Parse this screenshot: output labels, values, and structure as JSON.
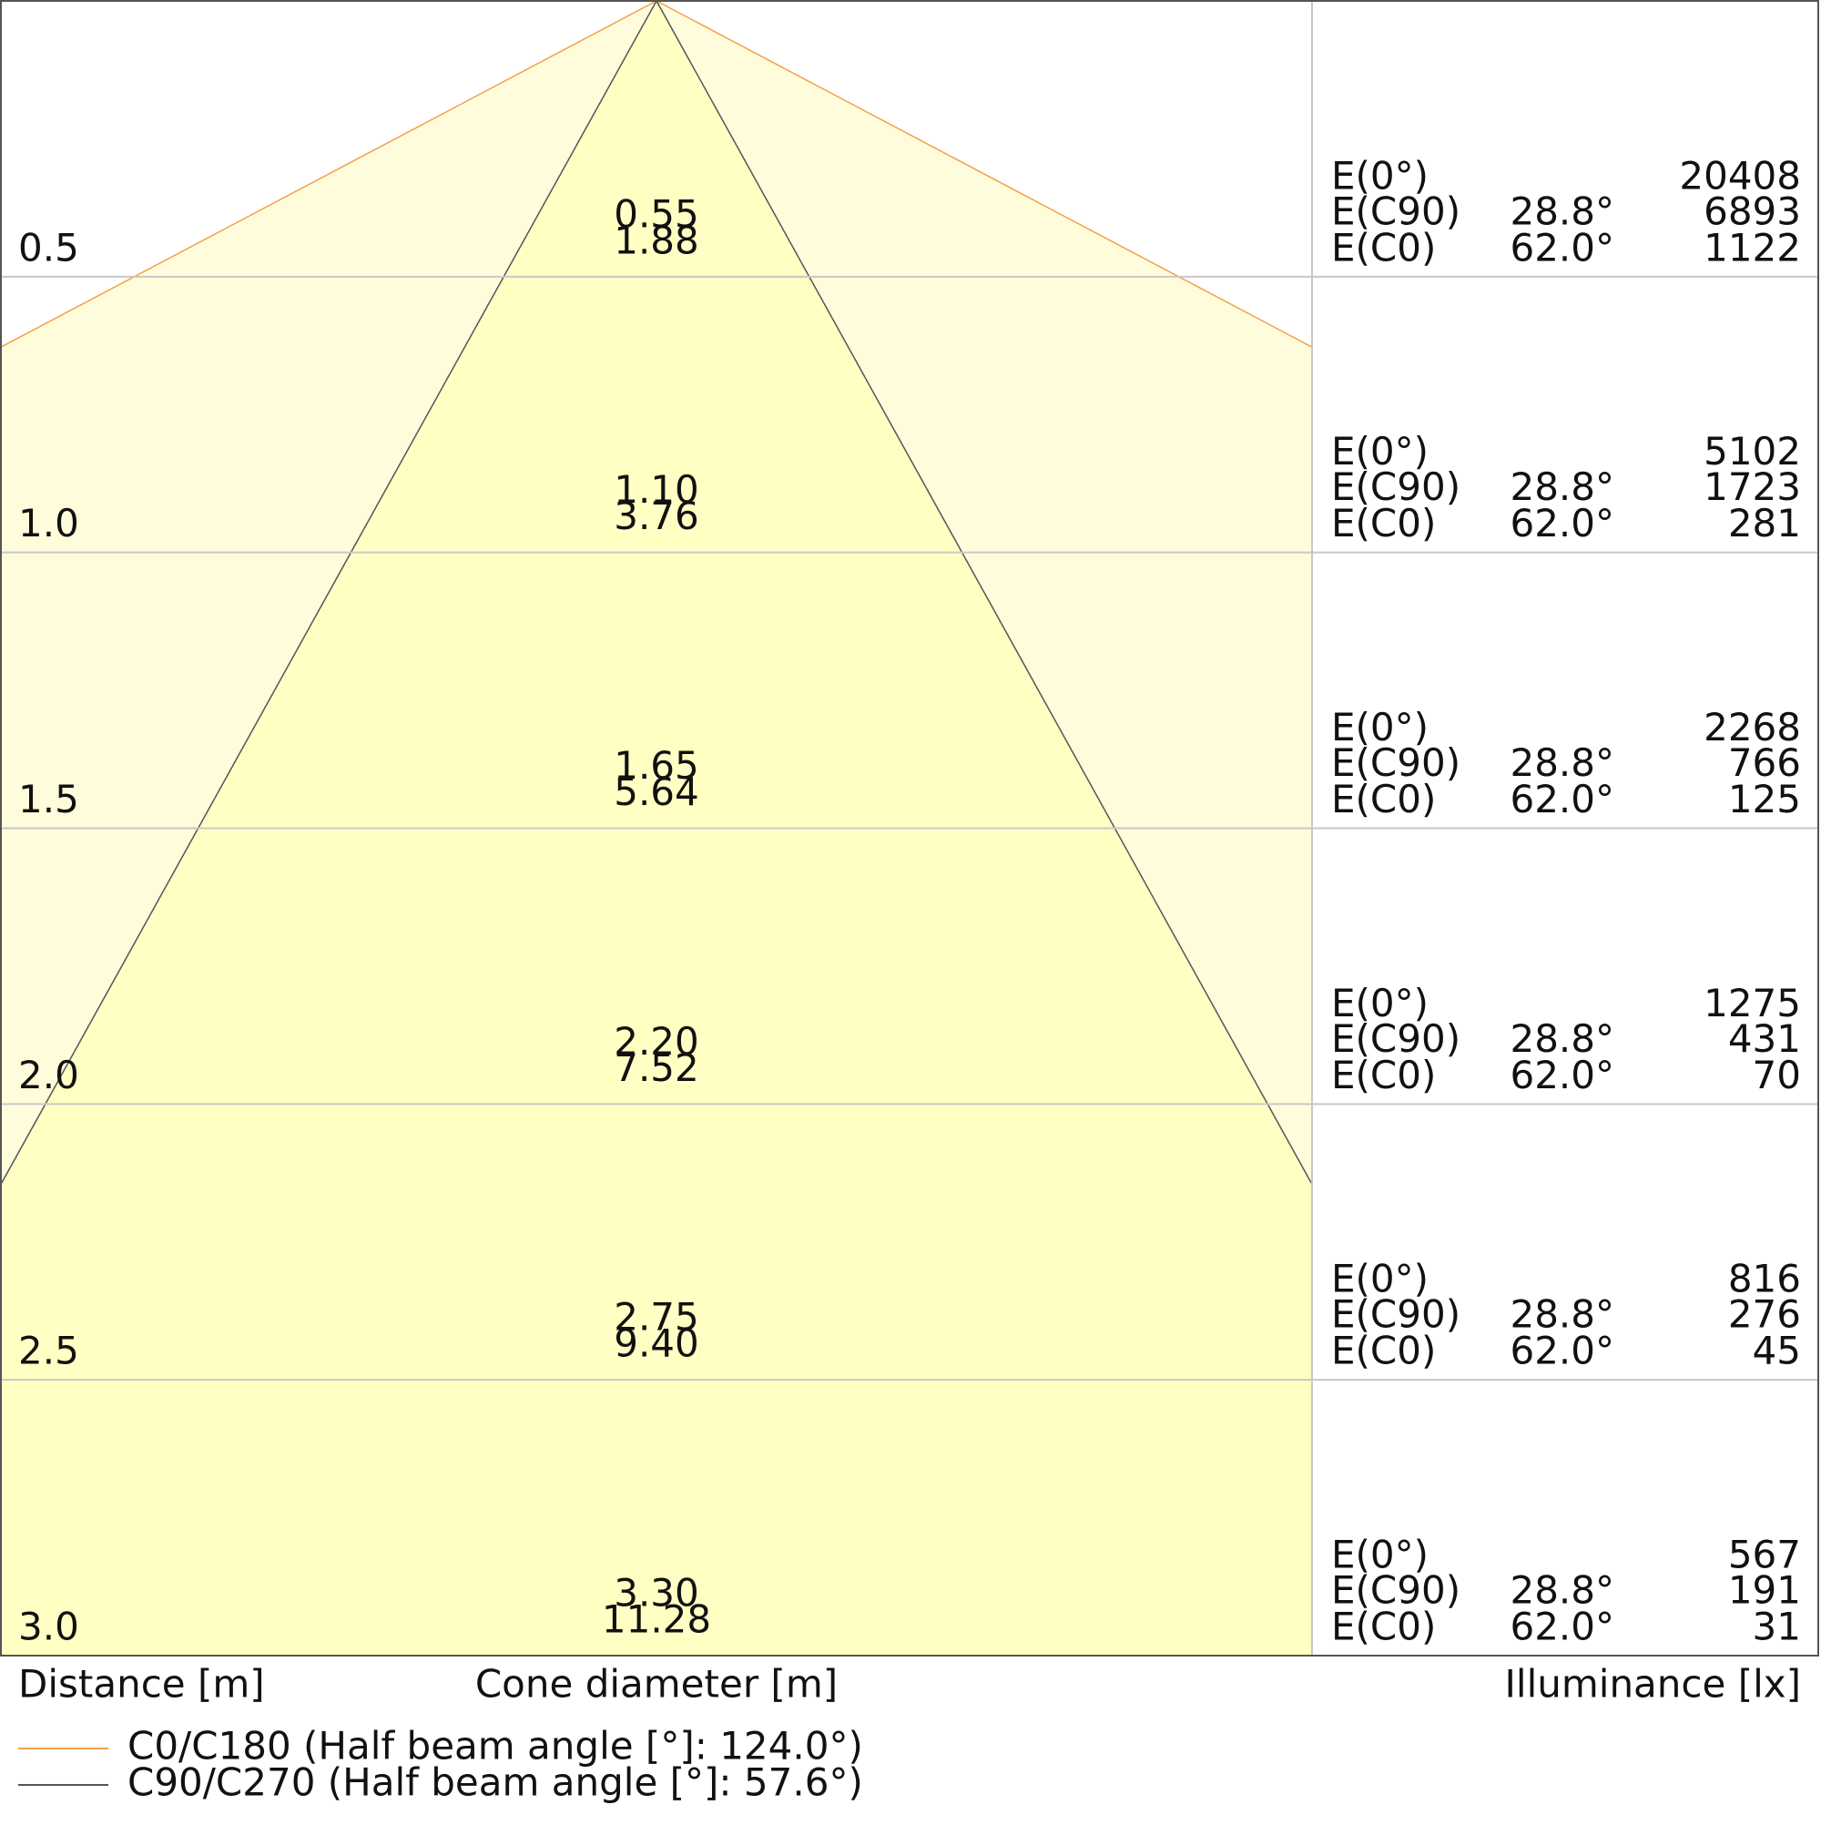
{
  "chart_data": {
    "type": "cone",
    "y_label": "Distance [m]",
    "x_label": "Cone diameter [m]",
    "table_label": "Illuminance [lx]",
    "ylim": [
      0,
      3
    ],
    "yticks": [
      {
        "value": 0.5,
        "label": "0.5"
      },
      {
        "value": 1,
        "label": "1.0"
      },
      {
        "value": 1.5,
        "label": "1.5"
      },
      {
        "value": 2,
        "label": "2.0"
      },
      {
        "value": 2.5,
        "label": "2.5"
      },
      {
        "value": 3,
        "label": "3.0"
      }
    ],
    "xlim": [
      -1.18,
      1.18
    ],
    "series": [
      {
        "name": "C0/C180 (Half beam angle [°]: 124.0°)",
        "color": "#f5a04a",
        "fill": "#fffcdc",
        "values": [
          1.88,
          3.76,
          5.64,
          7.52,
          9.4,
          11.28
        ],
        "value_labels": [
          "1.88",
          "3.76",
          "5.64",
          "7.52",
          "9.40",
          "11.28"
        ]
      },
      {
        "name": "C90/C270 (Half beam angle [°]: 57.6°)",
        "color": "#555555",
        "fill": "#ffffc4",
        "values": [
          0.55,
          1.1,
          1.65,
          2.2,
          2.75,
          3.3
        ],
        "value_labels": [
          "0.55",
          "1.10",
          "1.65",
          "2.20",
          "2.75",
          "3.30"
        ]
      }
    ],
    "illuminance": {
      "labels": [
        "E(0°)",
        "E(C90)",
        "E(C0)"
      ],
      "angles": [
        null,
        "28.8°",
        "62.0°"
      ],
      "values": [
        [
          20408,
          6893,
          1122
        ],
        [
          5102,
          1723,
          281
        ],
        [
          2268,
          766,
          125
        ],
        [
          1275,
          431,
          70
        ],
        [
          816,
          276,
          45
        ],
        [
          567,
          191,
          31
        ]
      ]
    }
  }
}
